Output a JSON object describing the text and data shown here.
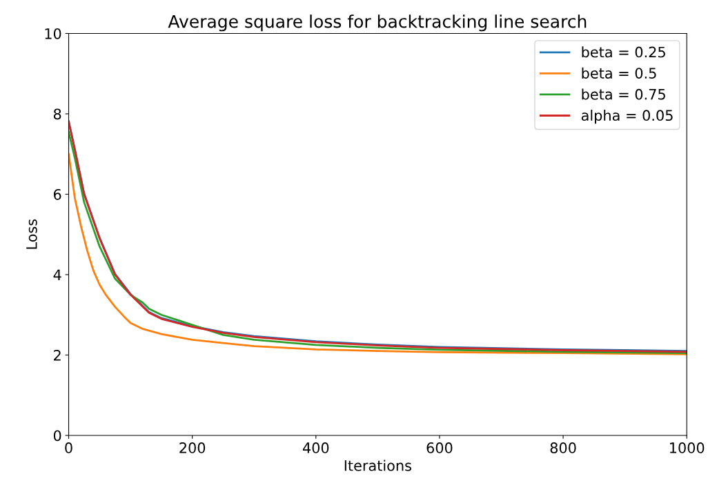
{
  "chart_data": {
    "type": "line",
    "title": "Average square loss for backtracking line search",
    "xlabel": "Iterations",
    "ylabel": "Loss",
    "xlim": [
      0,
      1000
    ],
    "ylim": [
      0,
      10
    ],
    "xticks": [
      0,
      200,
      400,
      600,
      800,
      1000
    ],
    "yticks": [
      0,
      2,
      4,
      6,
      8,
      10
    ],
    "legend": "top right",
    "grid": false,
    "series": [
      {
        "name": "beta = 0.25",
        "color": "#1f77b4",
        "x": [
          0,
          10,
          25,
          50,
          75,
          100,
          130,
          150,
          200,
          250,
          300,
          400,
          500,
          600,
          700,
          800,
          900,
          1000
        ],
        "values": [
          7.82,
          7.12,
          6.02,
          4.92,
          4.02,
          3.52,
          3.07,
          2.92,
          2.72,
          2.57,
          2.47,
          2.34,
          2.26,
          2.2,
          2.17,
          2.14,
          2.12,
          2.1
        ]
      },
      {
        "name": "beta = 0.5",
        "color": "#ff7f0e",
        "x": [
          0,
          10,
          20,
          30,
          40,
          50,
          60,
          75,
          90,
          100,
          120,
          150,
          200,
          250,
          300,
          400,
          500,
          600,
          800,
          1000
        ],
        "values": [
          7.0,
          5.9,
          5.2,
          4.6,
          4.1,
          3.75,
          3.5,
          3.2,
          2.95,
          2.8,
          2.65,
          2.52,
          2.38,
          2.3,
          2.22,
          2.14,
          2.1,
          2.07,
          2.05,
          2.02
        ]
      },
      {
        "name": "beta = 0.75",
        "color": "#2ca02c",
        "x": [
          0,
          10,
          25,
          50,
          75,
          100,
          120,
          130,
          150,
          200,
          250,
          300,
          400,
          500,
          600,
          800,
          1000
        ],
        "values": [
          7.55,
          6.9,
          5.8,
          4.7,
          3.9,
          3.5,
          3.3,
          3.15,
          3.0,
          2.75,
          2.5,
          2.38,
          2.25,
          2.18,
          2.13,
          2.08,
          2.05
        ]
      },
      {
        "name": "alpha = 0.05",
        "color": "#d62728",
        "x": [
          0,
          10,
          25,
          50,
          75,
          100,
          130,
          150,
          200,
          250,
          300,
          400,
          500,
          600,
          700,
          800,
          900,
          1000
        ],
        "values": [
          7.8,
          7.1,
          6.0,
          4.9,
          4.0,
          3.5,
          3.05,
          2.9,
          2.7,
          2.55,
          2.45,
          2.32,
          2.24,
          2.18,
          2.15,
          2.12,
          2.1,
          2.08
        ]
      }
    ]
  }
}
